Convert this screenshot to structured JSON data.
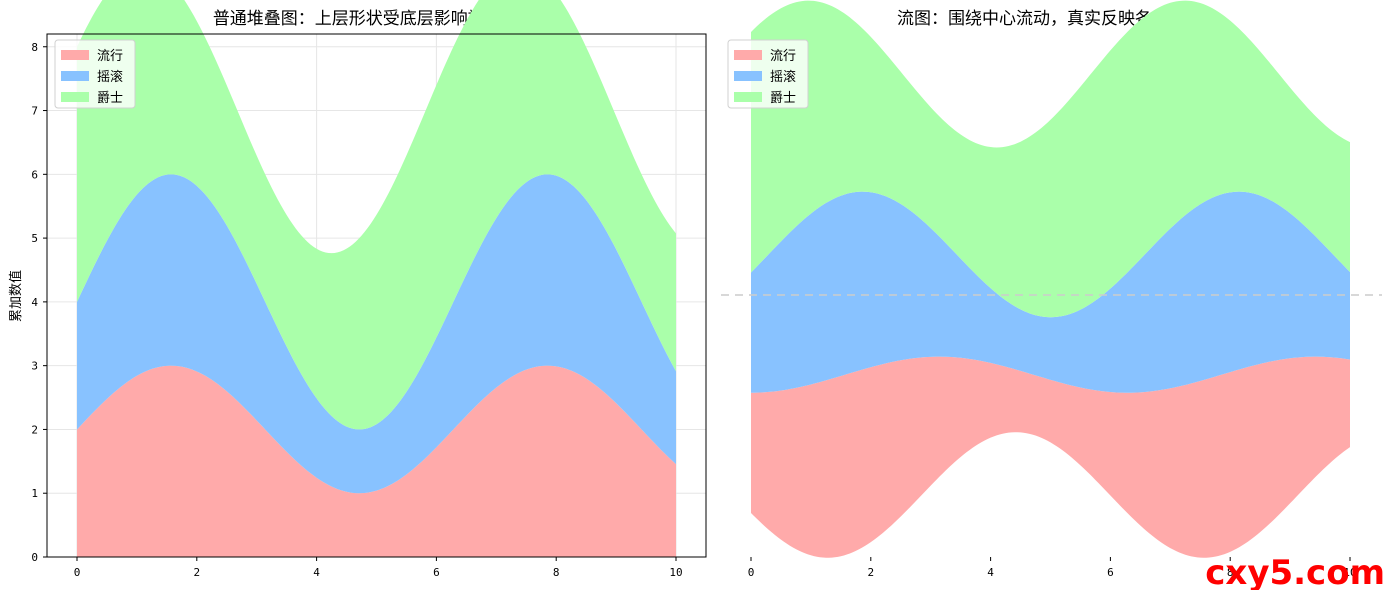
{
  "watermark": "cxy5.com",
  "colors": {
    "流行": "#ffaaaa",
    "摇滚": "#88c2ff",
    "爵士": "#aaffaa",
    "grid": "#e6e6e6",
    "baseline": "#cccccc"
  },
  "chart_data": [
    {
      "type": "area",
      "title": "普通堆叠图：上层形状受底层影响被'顶'歪了",
      "ylabel": "累加数值",
      "xlabel": "",
      "xlim": [
        0,
        10
      ],
      "ylim": [
        0,
        8.2
      ],
      "xticks": [
        0,
        2,
        4,
        6,
        8,
        10
      ],
      "yticks": [
        0,
        1,
        2,
        3,
        4,
        5,
        6,
        7,
        8
      ],
      "grid": true,
      "legend": "top-left",
      "series": [
        {
          "name": "流行",
          "values": "2 + sin(x)"
        },
        {
          "name": "摇滚",
          "values": "2 + sin(x)"
        },
        {
          "name": "爵士",
          "values": "3 + cos(x)"
        }
      ],
      "series_labels": [
        "流行",
        "摇滚",
        "爵士"
      ]
    },
    {
      "type": "area",
      "title": "流图：围绕中心流动，真实反映各层厚度",
      "xlim": [
        0,
        10
      ],
      "xticks": [
        0,
        2,
        4,
        6,
        8,
        10
      ],
      "grid": false,
      "legend": "top-left",
      "baseline": "centered (wiggle)",
      "series_labels": [
        "流行",
        "摇滚",
        "爵士"
      ]
    }
  ]
}
